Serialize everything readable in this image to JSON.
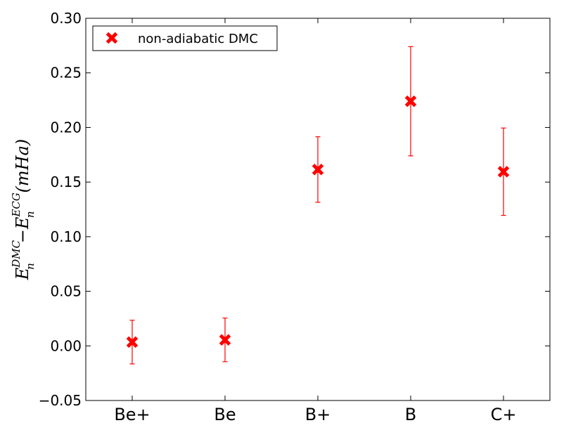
{
  "chart_data": {
    "type": "scatter",
    "categories": [
      "Be+",
      "Be",
      "B+",
      "B",
      "C+"
    ],
    "series": [
      {
        "name": "non-adiabatic DMC",
        "values": [
          0.0035,
          0.0055,
          0.1615,
          0.224,
          0.1595
        ],
        "errors": [
          0.02,
          0.02,
          0.03,
          0.05,
          0.04
        ],
        "color": "#ff0000",
        "marker": "x"
      }
    ],
    "ylabel": {
      "main": "E",
      "sub": "n",
      "sup": "DMC",
      "minus": "−",
      "main2": "E",
      "sub2": "n",
      "sup2": "ECG",
      "unit": "(mHa)"
    },
    "ylim": [
      -0.05,
      0.3
    ],
    "yticks": [
      -0.05,
      0.0,
      0.05,
      0.1,
      0.15,
      0.2,
      0.25,
      0.3
    ],
    "ytick_labels": [
      "−0.05",
      "0.00",
      "0.05",
      "0.10",
      "0.15",
      "0.20",
      "0.25",
      "0.30"
    ],
    "legend": {
      "position": "top-left",
      "entries": [
        "non-adiabatic DMC"
      ]
    },
    "grid": false
  }
}
